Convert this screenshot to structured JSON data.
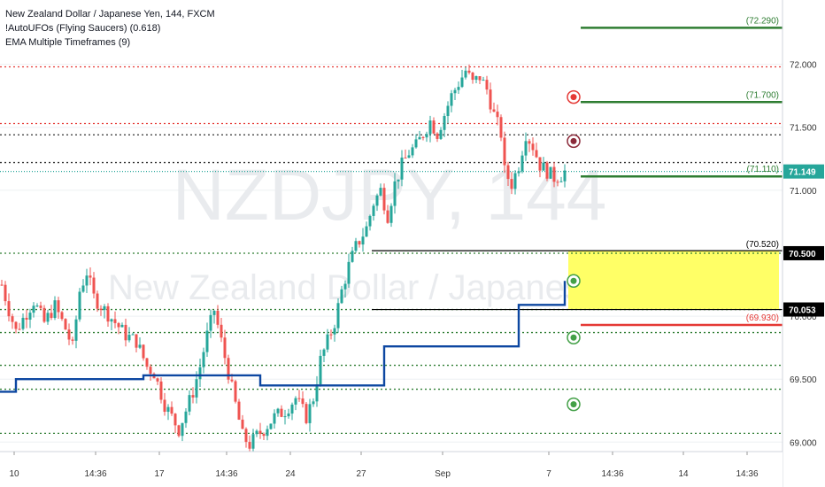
{
  "legend": {
    "symbol_line": "New Zealand Dollar / Japanese Yen, 144, FXCM",
    "indicator_1": "!AutoUFOs (Flying Saucers) (0.618)",
    "indicator_2": "EMA Multiple Timeframes (9)"
  },
  "watermark": {
    "ticker": "NZDJPY, 144",
    "name": "New Zealand Dollar / Japanese Yen"
  },
  "chart_data": {
    "type": "candlestick",
    "title": "New Zealand Dollar / Japanese Yen, 144, FXCM",
    "ylim": [
      68.96,
      72.37
    ],
    "y_ticks": [
      {
        "value": 69.0,
        "label": "69.000"
      },
      {
        "value": 69.5,
        "label": "69.500"
      },
      {
        "value": 70.0,
        "label": "70.000"
      },
      {
        "value": 71.0,
        "label": "71.000"
      },
      {
        "value": 71.5,
        "label": "71.500"
      },
      {
        "value": 72.0,
        "label": "72.000"
      }
    ],
    "x_ticks": [
      {
        "index": 0,
        "label": "10"
      },
      {
        "index": 23,
        "label": "14:36"
      },
      {
        "index": 41,
        "label": "17"
      },
      {
        "index": 60,
        "label": "14:36"
      },
      {
        "index": 78,
        "label": "24"
      },
      {
        "index": 98,
        "label": "27"
      },
      {
        "index": 121,
        "label": "Sep"
      },
      {
        "index": 151,
        "label": "7"
      },
      {
        "index": 169,
        "label": "14:36"
      },
      {
        "index": 189,
        "label": "14"
      },
      {
        "index": 207,
        "label": "14:36"
      }
    ],
    "anchors": [
      [
        0,
        70.25
      ],
      [
        2,
        70.05
      ],
      [
        4,
        69.88
      ],
      [
        6,
        69.98
      ],
      [
        9,
        70.12
      ],
      [
        12,
        69.95
      ],
      [
        15,
        70.08
      ],
      [
        18,
        69.9
      ],
      [
        20,
        69.75
      ],
      [
        22,
        70.2
      ],
      [
        24,
        70.35
      ],
      [
        26,
        70.15
      ],
      [
        29,
        70.05
      ],
      [
        32,
        69.95
      ],
      [
        35,
        69.85
      ],
      [
        38,
        69.8
      ],
      [
        41,
        69.6
      ],
      [
        43,
        69.55
      ],
      [
        46,
        69.3
      ],
      [
        48,
        69.2
      ],
      [
        50,
        69.1
      ],
      [
        52,
        69.25
      ],
      [
        54,
        69.4
      ],
      [
        56,
        69.6
      ],
      [
        58,
        69.85
      ],
      [
        60,
        70.05
      ],
      [
        62,
        69.8
      ],
      [
        64,
        69.55
      ],
      [
        66,
        69.3
      ],
      [
        68,
        69.05
      ],
      [
        70,
        68.98
      ],
      [
        72,
        69.05
      ],
      [
        74,
        69.1
      ],
      [
        77,
        69.2
      ],
      [
        80,
        69.25
      ],
      [
        83,
        69.35
      ],
      [
        86,
        69.2
      ],
      [
        88,
        69.35
      ],
      [
        90,
        69.65
      ],
      [
        92,
        69.8
      ],
      [
        94,
        69.95
      ],
      [
        96,
        70.2
      ],
      [
        98,
        70.4
      ],
      [
        100,
        70.55
      ],
      [
        103,
        70.7
      ],
      [
        105,
        70.9
      ],
      [
        107,
        71.0
      ],
      [
        109,
        70.8
      ],
      [
        111,
        71.05
      ],
      [
        113,
        71.2
      ],
      [
        115,
        71.3
      ],
      [
        117,
        71.35
      ],
      [
        119,
        71.45
      ],
      [
        121,
        71.55
      ],
      [
        123,
        71.45
      ],
      [
        125,
        71.6
      ],
      [
        127,
        71.75
      ],
      [
        129,
        71.85
      ],
      [
        131,
        71.95
      ],
      [
        133,
        71.85
      ],
      [
        135,
        71.9
      ],
      [
        137,
        71.8
      ],
      [
        139,
        71.6
      ],
      [
        141,
        71.45
      ],
      [
        142,
        71.15
      ],
      [
        144,
        71.05
      ],
      [
        146,
        71.2
      ],
      [
        148,
        71.45
      ],
      [
        150,
        71.35
      ],
      [
        152,
        71.2
      ],
      [
        154,
        71.15
      ],
      [
        156,
        71.1
      ],
      [
        158,
        71.12
      ],
      [
        159,
        71.149
      ]
    ],
    "series": [
      {
        "name": "EMA Multiple Timeframes (9)",
        "color": "#0d47a1",
        "steps": [
          [
            0,
            69.4
          ],
          [
            4,
            69.5
          ],
          [
            40,
            69.53
          ],
          [
            73,
            69.45
          ],
          [
            107,
            69.45
          ],
          [
            108,
            69.76
          ],
          [
            145,
            69.76
          ],
          [
            146,
            70.09
          ],
          [
            158,
            70.09
          ],
          [
            159,
            70.28
          ]
        ]
      }
    ],
    "levels": [
      {
        "kind": "red-dotted",
        "value": 71.98
      },
      {
        "kind": "red-dotted",
        "value": 71.53
      },
      {
        "kind": "black-dotted",
        "value": 71.44
      },
      {
        "kind": "black-dotted",
        "value": 71.22
      },
      {
        "kind": "teal-dotted",
        "value": 71.149
      },
      {
        "kind": "green-dotted",
        "value": 70.5
      },
      {
        "kind": "green-dotted",
        "value": 70.053
      },
      {
        "kind": "green-dotted",
        "value": 69.87
      },
      {
        "kind": "green-dotted",
        "value": 69.61
      },
      {
        "kind": "green-dotted",
        "value": 69.42
      },
      {
        "kind": "green-dotted",
        "value": 69.07
      }
    ],
    "zone": {
      "from": 70.053,
      "to": 70.52,
      "color": "#ffff66"
    },
    "zone_lines": [
      {
        "value": 70.52,
        "label": "(70.520)",
        "color": "#000000"
      },
      {
        "value": 70.053,
        "label": "",
        "color": "#000000"
      }
    ],
    "targets": [
      {
        "value": 72.29,
        "label": "(72.290)",
        "color": "#2e7d32"
      },
      {
        "value": 71.7,
        "label": "(71.700)",
        "color": "#2e7d32"
      },
      {
        "value": 71.11,
        "label": "(71.110)",
        "color": "#2e7d32"
      },
      {
        "value": 69.93,
        "label": "(69.930)",
        "color": "#e53935"
      }
    ],
    "markers": [
      {
        "value": 71.74,
        "color": "#e53935"
      },
      {
        "value": 71.39,
        "color": "#8b2a3a"
      },
      {
        "value": 70.28,
        "color": "#43a047"
      },
      {
        "value": 69.83,
        "color": "#43a047"
      },
      {
        "value": 69.3,
        "color": "#43a047"
      }
    ],
    "price_tags": [
      {
        "value": 71.149,
        "label": "71.149",
        "bg": "#26a69a",
        "fg": "#ffffff"
      },
      {
        "value": 70.5,
        "label": "70.500",
        "bg": "#000000",
        "fg": "#ffffff"
      },
      {
        "value": 70.053,
        "label": "70.053",
        "bg": "#000000",
        "fg": "#ffffff"
      }
    ],
    "colors": {
      "up": "#26a69a",
      "down": "#ef5350",
      "grid": "#eef0f3",
      "axis_text": "#333333",
      "watermark": "#e9ebee"
    }
  }
}
